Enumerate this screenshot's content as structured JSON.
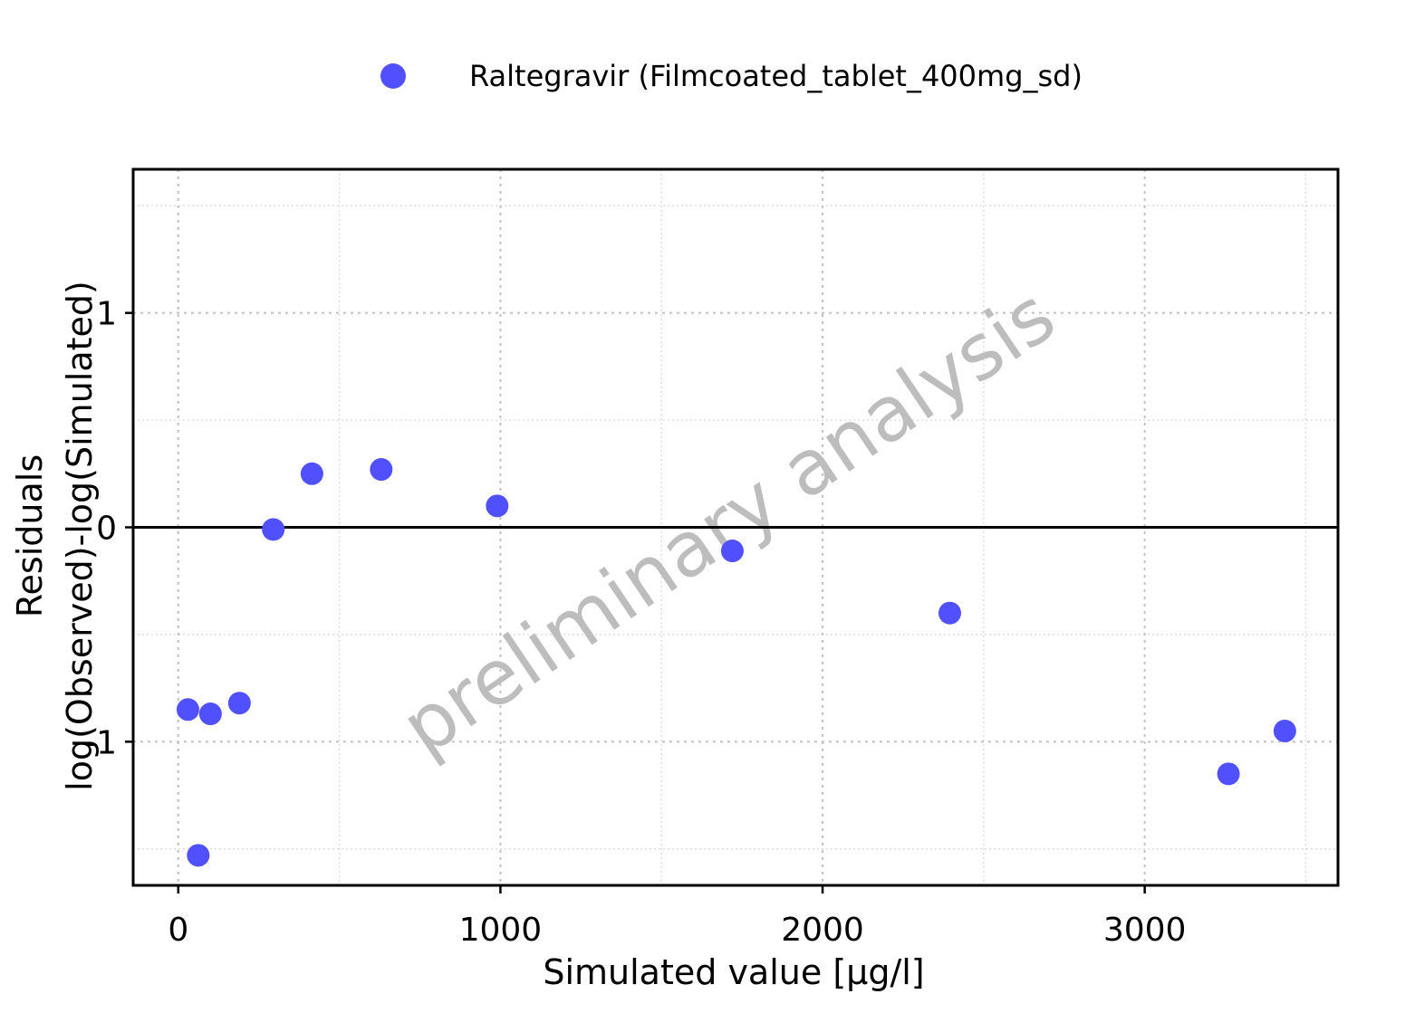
{
  "chart_data": {
    "type": "scatter",
    "legend": {
      "placement": "top",
      "entries": [
        {
          "name": "Raltegravir (Filmcoated_tablet_400mg_sd)",
          "color": "#5050FF"
        }
      ]
    },
    "watermark": "preliminary analysis",
    "xlabel": "Simulated value [µg/l]",
    "ylabel_line1": "Residuals",
    "ylabel_line2": "log(Observed)-log(Simulated)",
    "xlim": [
      -140,
      3600
    ],
    "ylim": [
      -1.67,
      1.67
    ],
    "x_ticks": [
      0,
      1000,
      2000,
      3000
    ],
    "x_tick_labels": [
      "0",
      "1000",
      "2000",
      "3000"
    ],
    "y_ticks": [
      -1,
      0,
      1
    ],
    "y_tick_labels": [
      "-1",
      "0",
      "1"
    ],
    "grid": true,
    "zero_line": true,
    "series": [
      {
        "name": "Raltegravir (Filmcoated_tablet_400mg_sd)",
        "color": "#5050FF",
        "points": [
          {
            "x": 30,
            "y": -0.85
          },
          {
            "x": 62,
            "y": -1.53
          },
          {
            "x": 100,
            "y": -0.87
          },
          {
            "x": 190,
            "y": -0.82
          },
          {
            "x": 295,
            "y": -0.01
          },
          {
            "x": 415,
            "y": 0.25
          },
          {
            "x": 630,
            "y": 0.27
          },
          {
            "x": 990,
            "y": 0.1
          },
          {
            "x": 1720,
            "y": -0.11
          },
          {
            "x": 2395,
            "y": -0.4
          },
          {
            "x": 3260,
            "y": -1.15
          },
          {
            "x": 3435,
            "y": -0.95
          }
        ]
      }
    ]
  }
}
